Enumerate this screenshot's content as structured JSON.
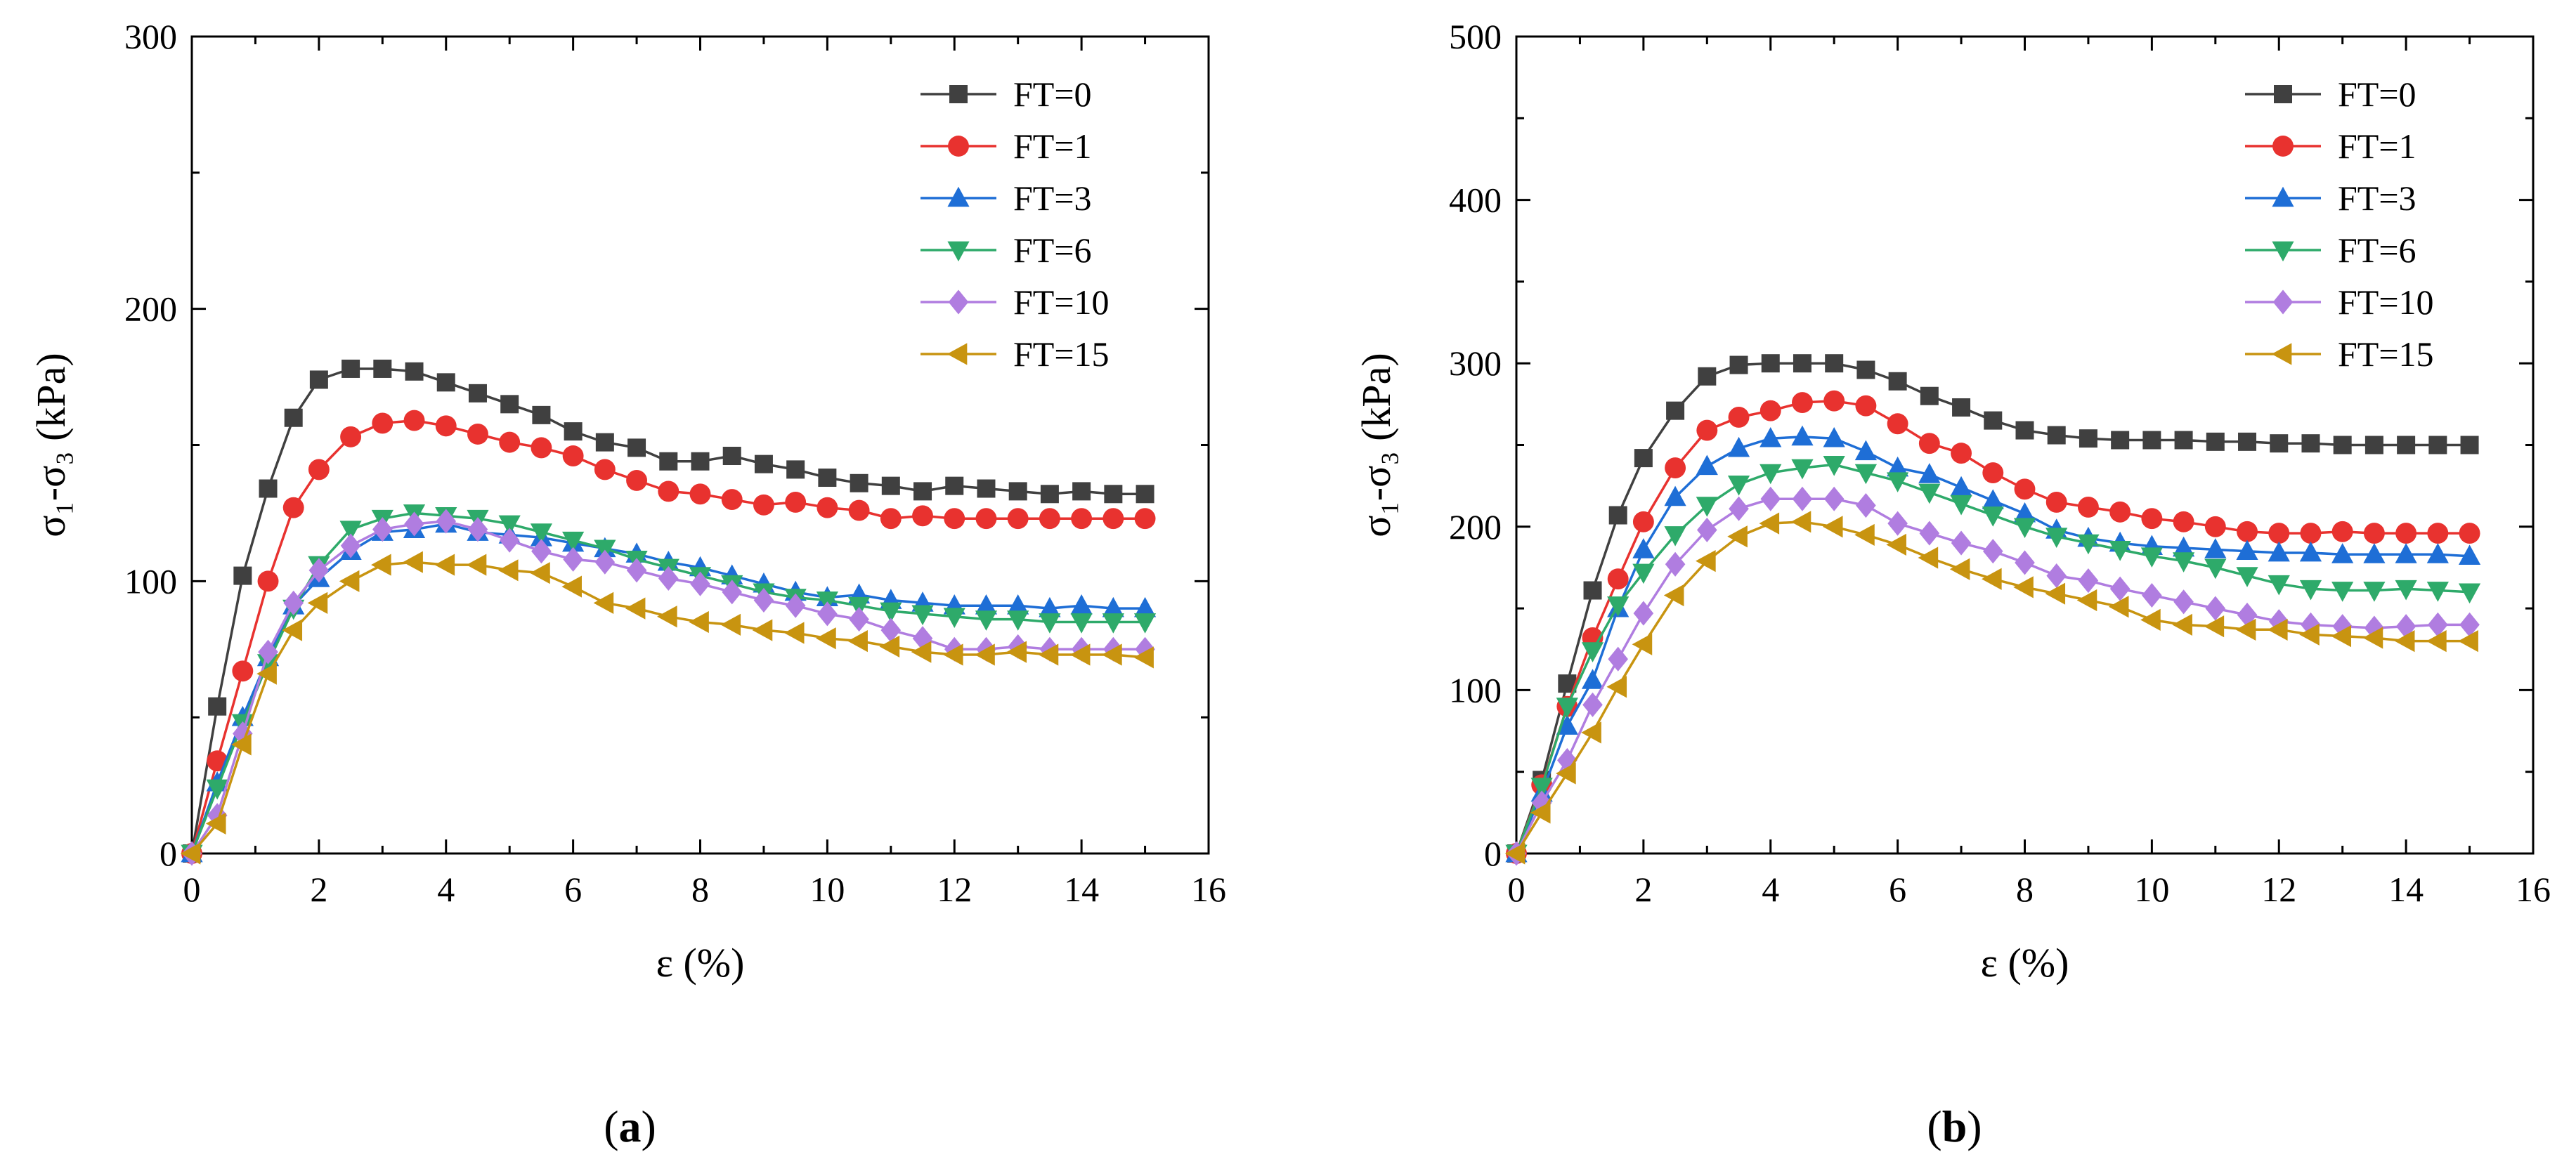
{
  "chart_data": [
    {
      "type": "line",
      "panel_label": "a",
      "xlabel": "ε (%)",
      "ylabel": "σ₁-σ₃ (kPa)",
      "xlim": [
        0,
        16
      ],
      "ylim": [
        0,
        300
      ],
      "xticks": [
        0,
        2,
        4,
        6,
        8,
        10,
        12,
        14,
        16
      ],
      "yticks": [
        0,
        100,
        200,
        300
      ],
      "grid": false,
      "legend_position": "top-right",
      "x": [
        0,
        0.4,
        0.8,
        1.2,
        1.6,
        2.0,
        2.5,
        3.0,
        3.5,
        4.0,
        4.5,
        5.0,
        5.5,
        6.0,
        6.5,
        7.0,
        7.5,
        8.0,
        8.5,
        9.0,
        9.5,
        10.0,
        10.5,
        11.0,
        11.5,
        12.0,
        12.5,
        13.0,
        13.5,
        14.0,
        14.5,
        15.0
      ],
      "series": [
        {
          "name": "FT=0",
          "color": "#404040",
          "marker": "square",
          "values": [
            0,
            54,
            102,
            134,
            160,
            174,
            178,
            178,
            177,
            173,
            169,
            165,
            161,
            155,
            151,
            149,
            144,
            144,
            146,
            143,
            141,
            138,
            136,
            135,
            133,
            135,
            134,
            133,
            132,
            133,
            132,
            132
          ]
        },
        {
          "name": "FT=1",
          "color": "#e8322f",
          "marker": "circle",
          "values": [
            0,
            34,
            67,
            100,
            127,
            141,
            153,
            158,
            159,
            157,
            154,
            151,
            149,
            146,
            141,
            137,
            133,
            132,
            130,
            128,
            129,
            127,
            126,
            123,
            124,
            123,
            123,
            123,
            123,
            123,
            123,
            123
          ]
        },
        {
          "name": "FT=3",
          "color": "#1e6ed6",
          "marker": "triangle-up",
          "values": [
            0,
            26,
            50,
            72,
            91,
            101,
            111,
            118,
            119,
            121,
            118,
            117,
            116,
            114,
            112,
            110,
            107,
            105,
            102,
            99,
            96,
            94,
            95,
            93,
            92,
            91,
            91,
            91,
            90,
            91,
            90,
            90
          ]
        },
        {
          "name": "FT=6",
          "color": "#2eaa6a",
          "marker": "triangle-down",
          "values": [
            0,
            24,
            48,
            70,
            90,
            106,
            119,
            123,
            125,
            124,
            123,
            121,
            118,
            115,
            112,
            108,
            105,
            102,
            99,
            96,
            94,
            93,
            91,
            89,
            88,
            87,
            86,
            86,
            85,
            85,
            85,
            85
          ]
        },
        {
          "name": "FT=10",
          "color": "#b07de0",
          "marker": "diamond",
          "values": [
            0,
            14,
            44,
            74,
            92,
            104,
            113,
            119,
            121,
            122,
            119,
            115,
            111,
            108,
            107,
            104,
            101,
            99,
            96,
            93,
            91,
            88,
            86,
            82,
            79,
            75,
            75,
            76,
            75,
            75,
            75,
            75
          ]
        },
        {
          "name": "FT=15",
          "color": "#c89410",
          "marker": "triangle-left",
          "values": [
            0,
            11,
            40,
            66,
            82,
            92,
            100,
            106,
            107,
            106,
            106,
            104,
            103,
            98,
            92,
            90,
            87,
            85,
            84,
            82,
            81,
            79,
            78,
            76,
            74,
            73,
            73,
            74,
            73,
            73,
            73,
            72
          ]
        }
      ]
    },
    {
      "type": "line",
      "panel_label": "b",
      "xlabel": "ε (%)",
      "ylabel": "σ₁-σ₃ (kPa)",
      "xlim": [
        0,
        16
      ],
      "ylim": [
        0,
        500
      ],
      "xticks": [
        0,
        2,
        4,
        6,
        8,
        10,
        12,
        14,
        16
      ],
      "yticks": [
        0,
        100,
        200,
        300,
        400,
        500
      ],
      "grid": false,
      "legend_position": "top-right",
      "x": [
        0,
        0.4,
        0.8,
        1.2,
        1.6,
        2.0,
        2.5,
        3.0,
        3.5,
        4.0,
        4.5,
        5.0,
        5.5,
        6.0,
        6.5,
        7.0,
        7.5,
        8.0,
        8.5,
        9.0,
        9.5,
        10.0,
        10.5,
        11.0,
        11.5,
        12.0,
        12.5,
        13.0,
        13.5,
        14.0,
        14.5,
        15.0
      ],
      "series": [
        {
          "name": "FT=0",
          "color": "#404040",
          "marker": "square",
          "values": [
            0,
            45,
            104,
            161,
            207,
            242,
            271,
            292,
            299,
            300,
            300,
            300,
            296,
            289,
            280,
            273,
            265,
            259,
            256,
            254,
            253,
            253,
            253,
            252,
            252,
            251,
            251,
            250,
            250,
            250,
            250,
            250
          ]
        },
        {
          "name": "FT=1",
          "color": "#e8322f",
          "marker": "circle",
          "values": [
            0,
            42,
            90,
            132,
            168,
            203,
            236,
            259,
            267,
            271,
            276,
            277,
            274,
            263,
            251,
            245,
            233,
            223,
            215,
            212,
            209,
            205,
            203,
            200,
            197,
            196,
            196,
            197,
            196,
            196,
            196,
            196
          ]
        },
        {
          "name": "FT=3",
          "color": "#1e6ed6",
          "marker": "triangle-up",
          "values": [
            0,
            37,
            78,
            106,
            150,
            186,
            218,
            237,
            248,
            254,
            255,
            254,
            246,
            236,
            232,
            224,
            216,
            208,
            198,
            193,
            190,
            188,
            187,
            186,
            185,
            184,
            184,
            183,
            183,
            183,
            183,
            182
          ]
        },
        {
          "name": "FT=6",
          "color": "#2eaa6a",
          "marker": "triangle-down",
          "values": [
            0,
            41,
            90,
            124,
            152,
            172,
            195,
            213,
            226,
            233,
            236,
            238,
            233,
            228,
            221,
            214,
            207,
            200,
            194,
            190,
            186,
            182,
            179,
            175,
            170,
            165,
            162,
            161,
            161,
            162,
            161,
            160
          ]
        },
        {
          "name": "FT=10",
          "color": "#b07de0",
          "marker": "diamond",
          "values": [
            0,
            31,
            57,
            91,
            119,
            147,
            177,
            198,
            211,
            217,
            217,
            217,
            213,
            202,
            196,
            190,
            185,
            178,
            170,
            167,
            162,
            158,
            154,
            150,
            146,
            142,
            140,
            139,
            138,
            139,
            140,
            140
          ]
        },
        {
          "name": "FT=15",
          "color": "#c89410",
          "marker": "triangle-left",
          "values": [
            0,
            25,
            49,
            74,
            102,
            128,
            158,
            179,
            194,
            202,
            203,
            200,
            195,
            189,
            181,
            174,
            168,
            163,
            159,
            155,
            151,
            143,
            140,
            139,
            137,
            137,
            134,
            133,
            132,
            130,
            130,
            130
          ]
        }
      ]
    }
  ]
}
